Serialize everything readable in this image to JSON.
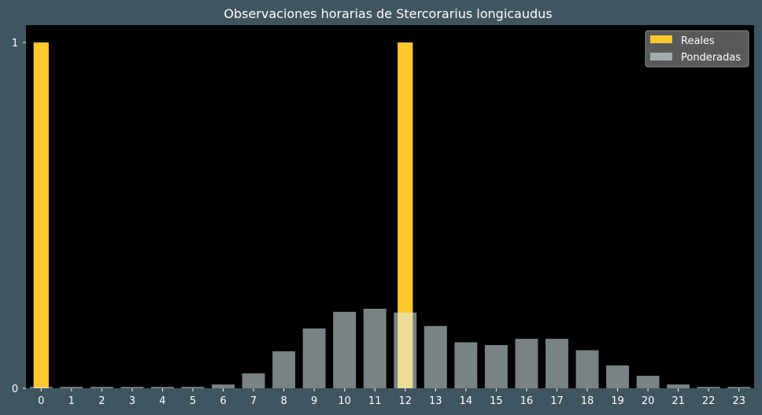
{
  "chart_data": {
    "type": "bar",
    "title": "Observaciones horarias de Stercorarius longicaudus",
    "xlabel": "",
    "ylabel": "",
    "categories": [
      "0",
      "1",
      "2",
      "3",
      "4",
      "5",
      "6",
      "7",
      "8",
      "9",
      "10",
      "11",
      "12",
      "13",
      "14",
      "15",
      "16",
      "17",
      "18",
      "19",
      "20",
      "21",
      "22",
      "23"
    ],
    "ylim": [
      0,
      1.05
    ],
    "yticks": [
      0,
      1
    ],
    "grid": false,
    "legend_position": "top-right",
    "series": [
      {
        "name": "Reales",
        "color": "#ffc72c",
        "values": [
          1,
          0,
          0,
          0,
          0,
          0,
          0,
          0,
          0,
          0,
          0,
          0,
          1,
          0,
          0,
          0,
          0,
          0,
          0,
          0,
          0,
          0,
          0,
          0
        ]
      },
      {
        "name": "Ponderadas",
        "color": "#dcecf0",
        "opacity": 0.55,
        "values": [
          0.004,
          0.004,
          0.004,
          0.004,
          0.004,
          0.004,
          0.011,
          0.043,
          0.107,
          0.173,
          0.221,
          0.23,
          0.219,
          0.18,
          0.133,
          0.125,
          0.143,
          0.143,
          0.11,
          0.066,
          0.036,
          0.011,
          0.004,
          0.004
        ]
      }
    ],
    "colors": {
      "figure_background": "#3f5661",
      "plot_background": "#000000",
      "text": "#ffffff",
      "legend_background": "#595959",
      "legend_border": "#8a8a8a"
    }
  }
}
